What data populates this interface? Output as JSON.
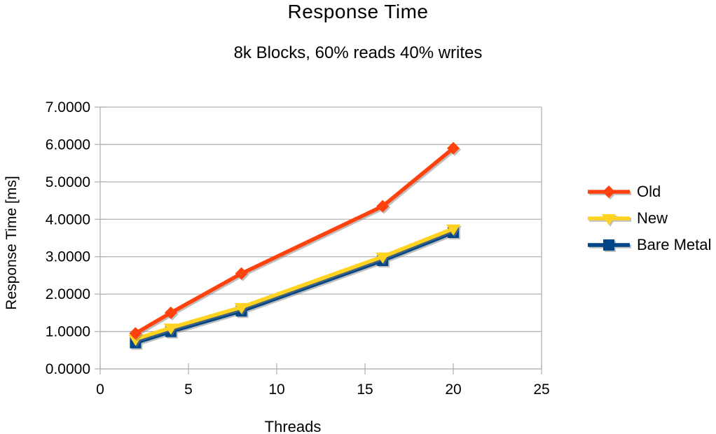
{
  "chart_data": {
    "type": "line",
    "title": "Response Time",
    "subtitle": "8k Blocks, 60% reads 40% writes",
    "xlabel": "Threads",
    "ylabel": "Response Time [ms]",
    "x": [
      2,
      4,
      8,
      16,
      20
    ],
    "xlim": [
      0,
      25
    ],
    "ylim": [
      0,
      7
    ],
    "x_ticks": [
      0,
      5,
      10,
      15,
      20,
      25
    ],
    "y_tick_labels": [
      "0.0000",
      "1.0000",
      "2.0000",
      "3.0000",
      "4.0000",
      "5.0000",
      "6.0000",
      "7.0000"
    ],
    "grid": "horizontal",
    "legend_position": "right",
    "colors": {
      "background": "#ffffff",
      "grid": "#b3b3b3",
      "axis": "#b3b3b3",
      "text": "#000000"
    },
    "series": [
      {
        "name": "Old",
        "color": "#ff420e",
        "marker": "diamond",
        "values": [
          0.95,
          1.5,
          2.55,
          4.35,
          5.9
        ]
      },
      {
        "name": "New",
        "color": "#ffd320",
        "marker": "triangle-down",
        "values": [
          0.8,
          1.1,
          1.65,
          3.0,
          3.75
        ]
      },
      {
        "name": "Bare Metal",
        "color": "#004586",
        "marker": "square",
        "values": [
          0.7,
          1.0,
          1.55,
          2.9,
          3.65
        ]
      }
    ]
  }
}
